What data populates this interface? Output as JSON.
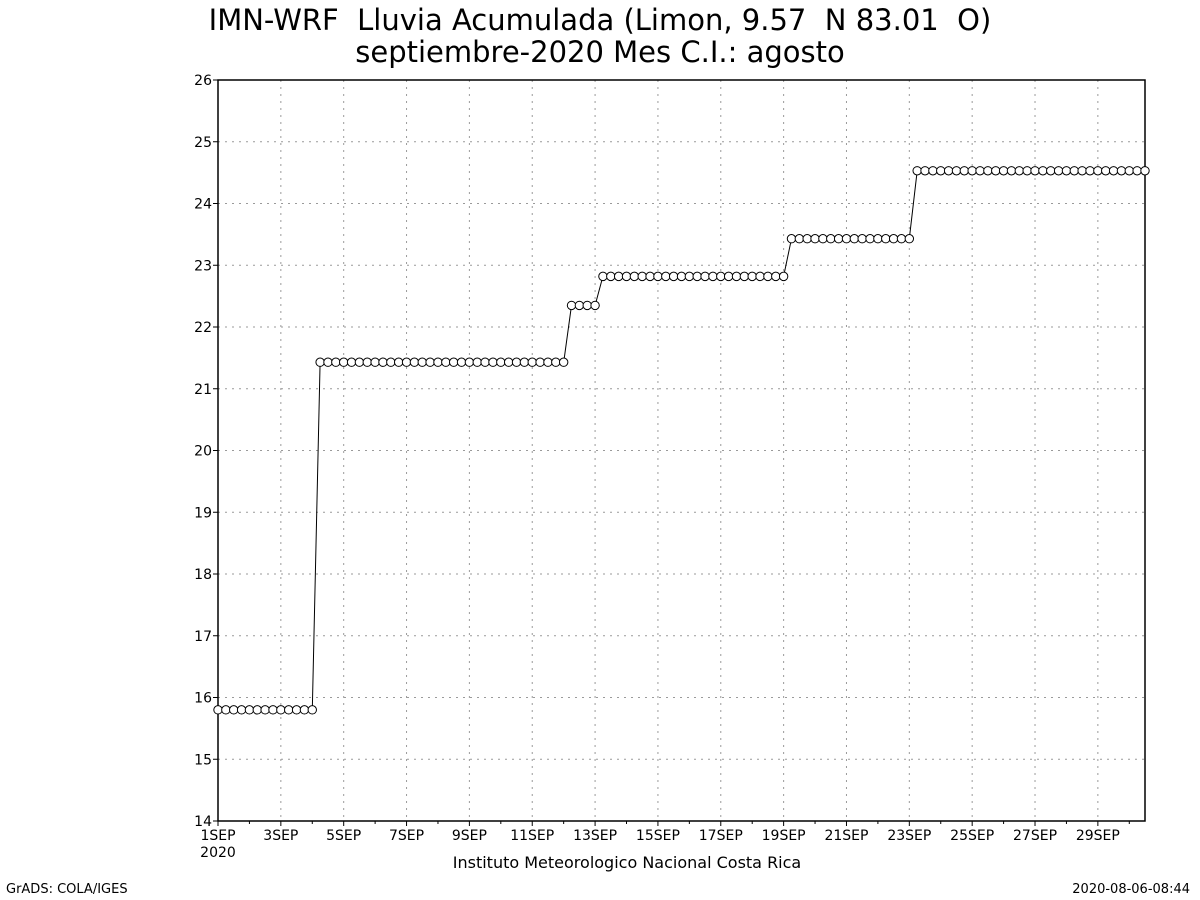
{
  "chart_data": {
    "type": "line",
    "title": "IMN-WRF  Lluvia Acumulada (Limon, 9.57  N 83.01  O)",
    "subtitle": "septiembre-2020 Mes C.I.: agosto",
    "xlabel": "",
    "ylabel": "",
    "ylim": [
      14,
      26
    ],
    "xlim": [
      "2020-09-01T00:00",
      "2020-09-30T12:00"
    ],
    "x_interval_hours": 6,
    "yticks": [
      "14",
      "15",
      "16",
      "17",
      "18",
      "19",
      "20",
      "21",
      "22",
      "23",
      "24",
      "25",
      "26"
    ],
    "xticks": [
      "1SEP",
      "3SEP",
      "5SEP",
      "7SEP",
      "9SEP",
      "11SEP",
      "13SEP",
      "15SEP",
      "17SEP",
      "19SEP",
      "21SEP",
      "23SEP",
      "25SEP",
      "27SEP",
      "29SEP"
    ],
    "xtick_year": "2020",
    "grid": true,
    "marker": "open-circle",
    "series": [
      {
        "segments": [
          {
            "from": "2020-09-01T00:00",
            "to": "2020-09-04T00:00",
            "value": 15.8
          },
          {
            "from": "2020-09-04T06:00",
            "to": "2020-09-12T00:00",
            "value": 21.43
          },
          {
            "from": "2020-09-12T06:00",
            "to": "2020-09-13T00:00",
            "value": 22.35
          },
          {
            "from": "2020-09-13T06:00",
            "to": "2020-09-19T00:00",
            "value": 22.82
          },
          {
            "from": "2020-09-19T06:00",
            "to": "2020-09-23T00:00",
            "value": 23.43
          },
          {
            "from": "2020-09-23T06:00",
            "to": "2020-09-30T12:00",
            "value": 24.53
          }
        ]
      }
    ]
  },
  "footer": {
    "institution": "Instituto Meteorologico Nacional Costa Rica",
    "credit": "GrADS: COLA/IGES",
    "timestamp": "2020-08-06-08:44"
  },
  "colors": {
    "line": "#000000",
    "grid": "#9a9a9a",
    "background": "#ffffff"
  }
}
